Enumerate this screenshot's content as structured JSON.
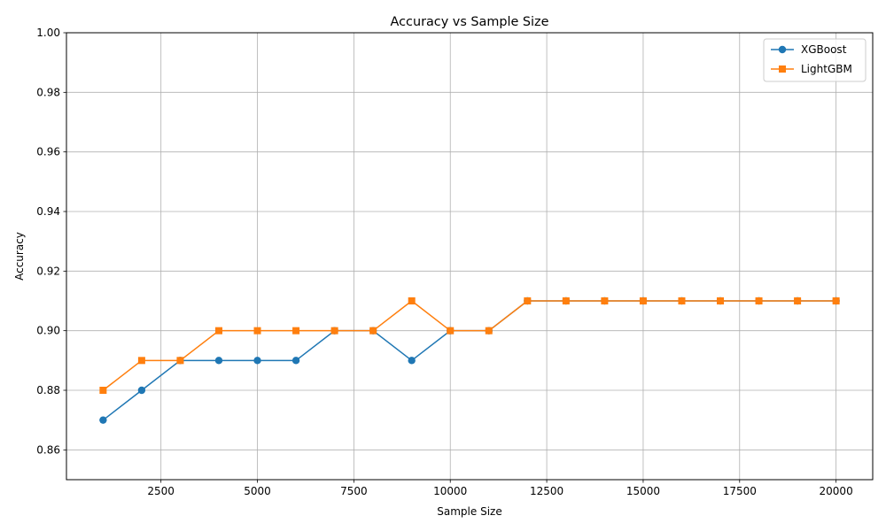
{
  "chart_data": {
    "type": "line",
    "title": "Accuracy vs Sample Size",
    "xlabel": "Sample Size",
    "ylabel": "Accuracy",
    "x": [
      1000,
      2000,
      3000,
      4000,
      5000,
      6000,
      7000,
      8000,
      9000,
      10000,
      11000,
      12000,
      13000,
      14000,
      15000,
      16000,
      17000,
      18000,
      19000,
      20000
    ],
    "xlim": [
      50,
      20950
    ],
    "ylim": [
      0.85,
      1.0
    ],
    "xticks": [
      2500,
      5000,
      7500,
      10000,
      12500,
      15000,
      17500,
      20000
    ],
    "yticks": [
      0.86,
      0.88,
      0.9,
      0.92,
      0.94,
      0.96,
      0.98,
      1.0
    ],
    "xtick_labels": [
      "2500",
      "5000",
      "7500",
      "10000",
      "12500",
      "15000",
      "17500",
      "20000"
    ],
    "ytick_labels": [
      "0.86",
      "0.88",
      "0.90",
      "0.92",
      "0.94",
      "0.96",
      "0.98",
      "1.00"
    ],
    "grid": true,
    "legend_position": "top-right",
    "series": [
      {
        "name": "XGBoost",
        "color": "#1f77b4",
        "marker": "circle",
        "values": [
          0.87,
          0.88,
          0.89,
          0.89,
          0.89,
          0.89,
          0.9,
          0.9,
          0.89,
          0.9,
          0.9,
          0.91,
          0.91,
          0.91,
          0.91,
          0.91,
          0.91,
          0.91,
          0.91,
          0.91
        ]
      },
      {
        "name": "LightGBM",
        "color": "#ff7f0e",
        "marker": "square",
        "values": [
          0.88,
          0.89,
          0.89,
          0.9,
          0.9,
          0.9,
          0.9,
          0.9,
          0.91,
          0.9,
          0.9,
          0.91,
          0.91,
          0.91,
          0.91,
          0.91,
          0.91,
          0.91,
          0.91,
          0.91
        ]
      }
    ]
  }
}
